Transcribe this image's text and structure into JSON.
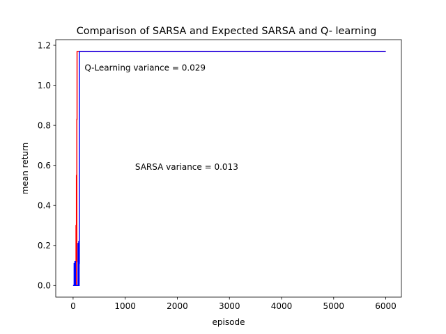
{
  "chart_data": {
    "type": "line",
    "title": "Comparison of SARSA and Expected SARSA and Q- learning",
    "xlabel": "episode",
    "ylabel": "mean return",
    "xlim": [
      -333,
      6300
    ],
    "ylim": [
      -0.058,
      1.228
    ],
    "x_ticks": [
      0,
      1000,
      2000,
      3000,
      4000,
      5000,
      6000
    ],
    "x_tick_labels": [
      "0",
      "1000",
      "2000",
      "3000",
      "4000",
      "5000",
      "6000"
    ],
    "y_ticks": [
      0.0,
      0.2,
      0.4,
      0.6,
      0.8,
      1.0,
      1.2
    ],
    "y_tick_labels": [
      "0.0",
      "0.2",
      "0.4",
      "0.6",
      "0.8",
      "1.0",
      "1.2"
    ],
    "grid": false,
    "legend": "none",
    "series": [
      {
        "color": "#ff0000",
        "x": [
          0,
          45,
          45,
          52,
          52,
          56,
          56,
          60,
          60,
          64,
          64,
          68,
          68,
          72,
          72,
          76,
          76,
          6000
        ],
        "y": [
          0.0,
          0.0,
          0.11,
          0.11,
          0.0,
          0.0,
          0.3,
          0.3,
          0.0,
          0.0,
          0.55,
          0.55,
          0.12,
          0.12,
          0.83,
          0.83,
          1.169,
          1.169
        ]
      },
      {
        "color": "#0000ff",
        "x": [
          0,
          20,
          20,
          25,
          25,
          35,
          35,
          45,
          45,
          95,
          95,
          100,
          100,
          108,
          108,
          112,
          112,
          116,
          116,
          120,
          120,
          6000
        ],
        "y": [
          0.0,
          0.0,
          0.11,
          0.11,
          0.0,
          0.0,
          0.12,
          0.12,
          0.0,
          0.0,
          0.21,
          0.21,
          0.0,
          0.0,
          0.22,
          0.22,
          0.0,
          0.0,
          0.11,
          0.11,
          1.169,
          1.169
        ]
      }
    ],
    "annotations": [
      {
        "text": "Q-Learning variance = 0.029",
        "x": 220,
        "y": 1.085
      },
      {
        "text": "SARSA variance = 0.013",
        "x": 1190,
        "y": 0.59
      }
    ]
  }
}
